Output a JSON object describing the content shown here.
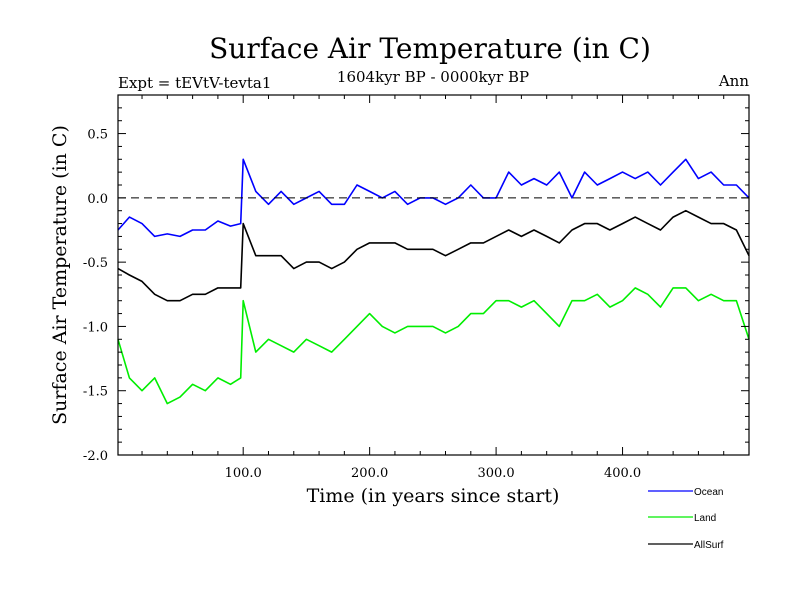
{
  "chart_data": {
    "type": "line",
    "title": "Surface Air Temperature (in C)",
    "subtitle_left": "Expt = tEVtV-tevta1",
    "subtitle_center": "1604kyr BP - 0000kyr BP",
    "subtitle_right": "Ann",
    "xlabel": "Time (in years since start)",
    "ylabel": "Surface Air Temperature (in C)",
    "xlim": [
      1,
      500
    ],
    "ylim": [
      -2.0,
      0.8
    ],
    "xticks": [
      100,
      200,
      300,
      400
    ],
    "xtick_labels": [
      "100.0",
      "200.0",
      "300.0",
      "400.0"
    ],
    "yticks": [
      0.5,
      0.0,
      -0.5,
      -1.0,
      -1.5,
      -2.0
    ],
    "ytick_labels": [
      "0.5",
      "0.0",
      "-0.5",
      "-1.0",
      "-1.5",
      "-2.0"
    ],
    "reference_line": 0.0,
    "legend": [
      "Ocean",
      "Land",
      "AllSurf"
    ],
    "legend_position": "bottom-right",
    "x": [
      1,
      10,
      20,
      30,
      40,
      50,
      60,
      70,
      80,
      90,
      98,
      100,
      110,
      120,
      130,
      140,
      150,
      160,
      170,
      180,
      190,
      200,
      210,
      220,
      230,
      240,
      250,
      260,
      270,
      280,
      290,
      300,
      310,
      320,
      330,
      340,
      350,
      360,
      370,
      380,
      390,
      400,
      410,
      420,
      430,
      440,
      450,
      460,
      470,
      480,
      490,
      500
    ],
    "series": [
      {
        "name": "Ocean",
        "color": "#0000ff",
        "values": [
          -0.25,
          -0.15,
          -0.2,
          -0.3,
          -0.28,
          -0.3,
          -0.25,
          -0.25,
          -0.18,
          -0.22,
          -0.2,
          0.3,
          0.05,
          -0.05,
          0.05,
          -0.05,
          0.0,
          0.05,
          -0.05,
          -0.05,
          0.1,
          0.05,
          0.0,
          0.05,
          -0.05,
          0.0,
          0.0,
          -0.05,
          0.0,
          0.1,
          0.0,
          0.0,
          0.2,
          0.1,
          0.15,
          0.1,
          0.2,
          0.0,
          0.2,
          0.1,
          0.15,
          0.2,
          0.15,
          0.2,
          0.1,
          0.2,
          0.3,
          0.15,
          0.2,
          0.1,
          0.1,
          0.0
        ]
      },
      {
        "name": "Land",
        "color": "#00ee00",
        "values": [
          -1.1,
          -1.4,
          -1.5,
          -1.4,
          -1.6,
          -1.55,
          -1.45,
          -1.5,
          -1.4,
          -1.45,
          -1.4,
          -0.8,
          -1.2,
          -1.1,
          -1.15,
          -1.2,
          -1.1,
          -1.15,
          -1.2,
          -1.1,
          -1.0,
          -0.9,
          -1.0,
          -1.05,
          -1.0,
          -1.0,
          -1.0,
          -1.05,
          -1.0,
          -0.9,
          -0.9,
          -0.8,
          -0.8,
          -0.85,
          -0.8,
          -0.9,
          -1.0,
          -0.8,
          -0.8,
          -0.75,
          -0.85,
          -0.8,
          -0.7,
          -0.75,
          -0.85,
          -0.7,
          -0.7,
          -0.8,
          -0.75,
          -0.8,
          -0.8,
          -1.1
        ]
      },
      {
        "name": "AllSurf",
        "color": "#000000",
        "values": [
          -0.55,
          -0.6,
          -0.65,
          -0.75,
          -0.8,
          -0.8,
          -0.75,
          -0.75,
          -0.7,
          -0.7,
          -0.7,
          -0.2,
          -0.45,
          -0.45,
          -0.45,
          -0.55,
          -0.5,
          -0.5,
          -0.55,
          -0.5,
          -0.4,
          -0.35,
          -0.35,
          -0.35,
          -0.4,
          -0.4,
          -0.4,
          -0.45,
          -0.4,
          -0.35,
          -0.35,
          -0.3,
          -0.25,
          -0.3,
          -0.25,
          -0.3,
          -0.35,
          -0.25,
          -0.2,
          -0.2,
          -0.25,
          -0.2,
          -0.15,
          -0.2,
          -0.25,
          -0.15,
          -0.1,
          -0.15,
          -0.2,
          -0.2,
          -0.25,
          -0.45
        ]
      }
    ]
  }
}
